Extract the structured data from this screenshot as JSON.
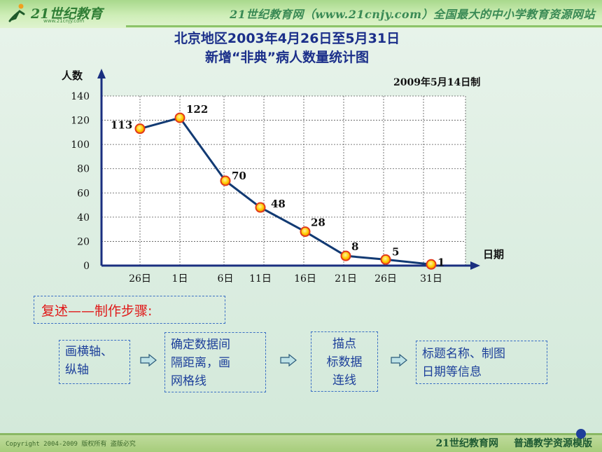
{
  "header": {
    "logo_text": "21世纪教育",
    "logo_url": "www.21cnjy.com",
    "slogan": "21世纪教育网（www.21cnjy.com）全国最大的中小学教育资源网站"
  },
  "chart_data": {
    "type": "line",
    "title_line1": "北京地区2003年4月26日至5月31日",
    "title_line2": "新增“非典”病人数量统计图",
    "made_date": "2009年5月14日制",
    "ylabel": "人数",
    "xlabel": "日期",
    "ylim": [
      0,
      140
    ],
    "yticks": [
      0,
      20,
      40,
      60,
      80,
      100,
      120,
      140
    ],
    "categories": [
      "26日",
      "1日",
      "6日",
      "11日",
      "16日",
      "21日",
      "26日",
      "31日"
    ],
    "values": [
      113,
      122,
      70,
      48,
      28,
      8,
      5,
      1
    ],
    "grid": true,
    "line_color": "#123a73",
    "marker_color": "#ffcc00",
    "marker_edge": "#e23a1a"
  },
  "recap": {
    "label": "复述——制作步骤:"
  },
  "steps": [
    {
      "lines": [
        "画横轴、",
        "纵轴"
      ]
    },
    {
      "lines": [
        "确定数据间",
        "隔距离，画",
        "网格线"
      ]
    },
    {
      "lines": [
        "描点",
        "标数据",
        "连线"
      ]
    },
    {
      "lines": [
        "标题名称、制图",
        "日期等信息"
      ]
    }
  ],
  "footer": {
    "copyright": "Copyright 2004-2009 版权所有 盗版必究",
    "site": "21世纪教育网",
    "tagline": "普通教学资源模版"
  }
}
